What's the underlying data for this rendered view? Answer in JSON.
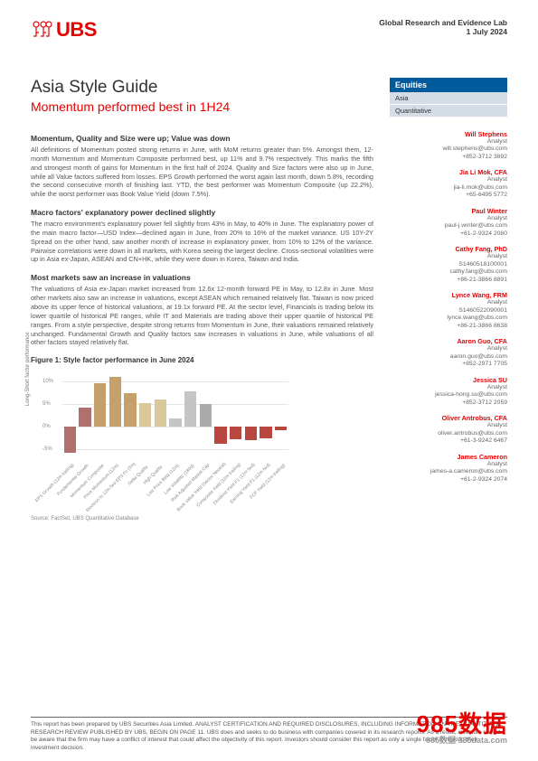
{
  "header": {
    "org": "Global Research and Evidence Lab",
    "date": "1 July 2024",
    "logo": "UBS"
  },
  "title": "Asia Style Guide",
  "subtitle": "Momentum performed best in 1H24",
  "sections": [
    {
      "h": "Momentum, Quality and Size were up; Value was down",
      "p": "All definitions of Momentum posted strong returns in June, with MoM returns greater than 5%. Amongst them, 12-month Momentum and Momentum Composite performed best, up 11% and 9.7% respectively. This marks the fifth and strongest month of gains for Momentum in the first half of 2024. Quality and Size factors were also up in June, while all Value factors suffered from losses. EPS Growth performed the worst again last month, down 5.8%, recording the second consecutive month of finishing last. YTD, the best performer was Momentum Composite (up 22.2%), while the worst performer was Book Value Yield (down 7.5%)."
    },
    {
      "h": "Macro factors' explanatory power declined slightly",
      "p": "The macro environment's explanatory power fell slightly from 43% in May, to 40% in June. The explanatory power of the main macro factor—USD Index—declined again in June, from 20% to 16% of the market variance. US 10Y-2Y Spread on the other hand, saw another month of increase in explanatory power, from 10% to 12% of the variance. Pairwise correlations were down in all markets, with Korea seeing the largest decline. Cross-sectional volatilities were up in Asia ex-Japan, ASEAN and CN+HK, while they were down in Korea, Taiwan and India."
    },
    {
      "h": "Most markets saw an increase in valuations",
      "p": "The valuations of Asia ex-Japan market increased from 12.6x 12-month forward PE in May, to 12.8x in June. Most other markets also saw an increase in valuations, except ASEAN which remained relatively flat. Taiwan is now priced above its upper fence of historical valuations, at 19.1x forward PE. At the sector level, Financials is trading below its lower quartile of historical PE ranges, while IT and Materials are trading above their upper quartile of historical PE ranges. From a style perspective, despite strong returns from Momentum in June, their valuations remained relatively unchanged. Fundamental Growth and Quality factors saw increases in valuations in June, while valuations of all other factors stayed relatively flat."
    }
  ],
  "figure": {
    "title": "Figure 1: Style factor performance in June 2024",
    "ylabel": "Long-Short factor performance",
    "ylim": [
      -8,
      12
    ],
    "yticks": [
      -5,
      0,
      5,
      10
    ],
    "zero": 0,
    "bars": [
      {
        "label": "EPS Growth (12m trailing)",
        "value": -5.8,
        "color": "#b0706c"
      },
      {
        "label": "Fundamental Growth",
        "value": 4.2,
        "color": "#b0706c"
      },
      {
        "label": "Momentum Composite",
        "value": 9.7,
        "color": "#c5a06b"
      },
      {
        "label": "Price Momentum (12m)",
        "value": 11.0,
        "color": "#c5a06b"
      },
      {
        "label": "Revision to 12m fwd EPS Fc (3m)",
        "value": 7.5,
        "color": "#c5a06b"
      },
      {
        "label": "Delta Quality",
        "value": 5.2,
        "color": "#d9c89a"
      },
      {
        "label": "High Quality",
        "value": 6.0,
        "color": "#d9c89a"
      },
      {
        "label": "Low Price Beta (12m)",
        "value": 1.8,
        "color": "#c5c5c5"
      },
      {
        "label": "Low Volatility (180d)",
        "value": 7.8,
        "color": "#c5c5c5"
      },
      {
        "label": "Risk Adjusted Market Cap",
        "value": 5.0,
        "color": "#aaaaaa"
      },
      {
        "label": "Book Value Yield (Sector Neutral)",
        "value": -3.8,
        "color": "#b8473f"
      },
      {
        "label": "Composite Yield (12m trailing)",
        "value": -2.8,
        "color": "#b8473f"
      },
      {
        "label": "Dividend Yield F1 (12m fwd)",
        "value": -3.0,
        "color": "#b8473f"
      },
      {
        "label": "Earning Yield F1 (12m fwd)",
        "value": -2.5,
        "color": "#b8473f"
      },
      {
        "label": "FCF Yield (12m trailing)",
        "value": -0.8,
        "color": "#b8473f"
      }
    ],
    "source": "Source: FactSet, UBS Quantitative Database"
  },
  "equities": {
    "header": "Equities",
    "rows": [
      "Asia",
      "Quantitative"
    ]
  },
  "analysts": [
    {
      "name": "Will Stephens",
      "title": "Analyst",
      "email": "will.stephens@ubs.com",
      "phone": "+852-3712 3892"
    },
    {
      "name": "Jia Li Mok, CFA",
      "title": "Analyst",
      "email": "jia-li.mok@ubs.com",
      "phone": "+65-6495 5772"
    },
    {
      "name": "Paul Winter",
      "title": "Analyst",
      "email": "paul-j.winter@ubs.com",
      "phone": "+61-2-9324 2080"
    },
    {
      "name": "Cathy Fang, PhD",
      "title": "Analyst",
      "email": "S1460518100001",
      "extra": "cathy.fang@ubs.com",
      "phone": "+86-21-3866 8891"
    },
    {
      "name": "Lynce Wang, FRM",
      "title": "Analyst",
      "email": "S1460522090001",
      "extra": "lynce.wang@ubs.com",
      "phone": "+86-21-3866 8638"
    },
    {
      "name": "Aaron Guo, CFA",
      "title": "Analyst",
      "email": "aaron.guo@ubs.com",
      "phone": "+852-2971 7705"
    },
    {
      "name": "Jessica SU",
      "title": "Analyst",
      "email": "jessica-hong.su@ubs.com",
      "phone": "+852-3712 2059"
    },
    {
      "name": "Oliver Antrobus, CFA",
      "title": "Analyst",
      "email": "oliver.antrobus@ubs.com",
      "phone": "+61-3-9242 6467"
    },
    {
      "name": "James Cameron",
      "title": "Analyst",
      "email": "james-a.cameron@ubs.com",
      "phone": "+61-2-9324 2074"
    }
  ],
  "footer": "This report has been prepared by UBS Securities Asia Limited. ANALYST CERTIFICATION AND REQUIRED DISCLOSURES, INCLUDING INFORMATION ON THE QUANTITATIVE RESEARCH REVIEW PUBLISHED BY UBS, BEGIN ON PAGE 11. UBS does and seeks to do business with companies covered in its research reports. As a result, investors should be aware that the firm may have a conflict of interest that could affect the objectivity of this report. Investors should consider this report as only a single factor in making their investment decision.",
  "watermark": {
    "main": "985数据",
    "sub": "985数据 985data.com"
  }
}
